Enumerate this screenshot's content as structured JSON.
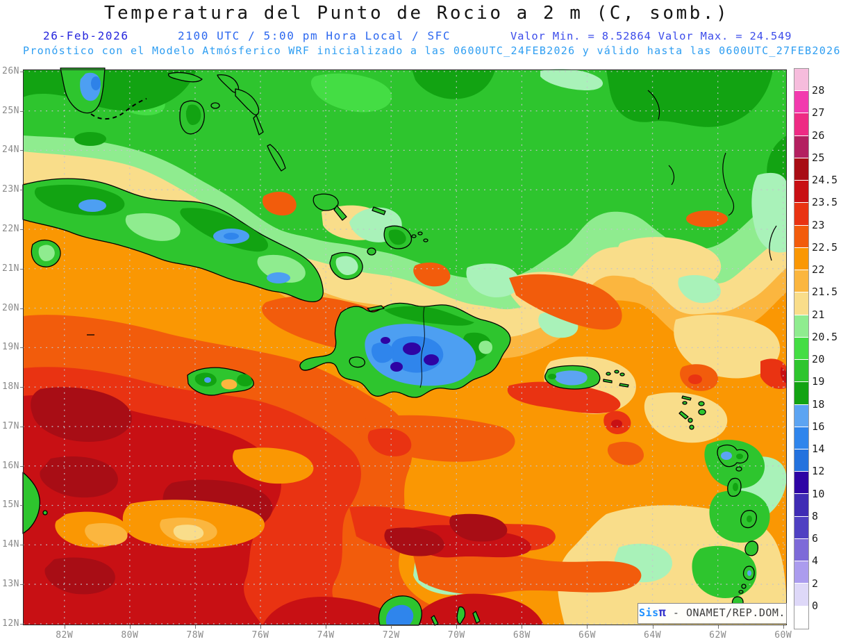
{
  "header": {
    "title": "Temperatura del Punto de Rocio a 2 m (C, somb.)",
    "date": "26-Feb-2026",
    "time": "2100 UTC / 5:00 pm Hora Local / SFC",
    "valor": "Valor Min. = 8.52864  Valor Max. = 24.549",
    "forecast": "Pronóstico con el Modelo Atmósferico WRF inicializado a las 0600UTC_24FEB2026 y válido hasta las  0600UTC_27FEB2026",
    "title_color": "#141414",
    "date_color": "#2626dd",
    "time_color": "#2d68ef",
    "valor_color": "#3c4cea",
    "forecast_color": "#2e9ef2"
  },
  "watermark": {
    "brand": "Sis",
    "symbol": "π",
    "rest": " - ONAMET/REP.DOM.",
    "brand_color": "#1e90ff",
    "symbol_color": "#3333cc",
    "rest_color": "#3c3c3c"
  },
  "axes": {
    "lat_ticks": [
      {
        "label": "26N",
        "deg": 26
      },
      {
        "label": "25N",
        "deg": 25
      },
      {
        "label": "24N",
        "deg": 24
      },
      {
        "label": "23N",
        "deg": 23
      },
      {
        "label": "22N",
        "deg": 22
      },
      {
        "label": "21N",
        "deg": 21
      },
      {
        "label": "20N",
        "deg": 20
      },
      {
        "label": "19N",
        "deg": 19
      },
      {
        "label": "18N",
        "deg": 18
      },
      {
        "label": "17N",
        "deg": 17
      },
      {
        "label": "16N",
        "deg": 16
      },
      {
        "label": "15N",
        "deg": 15
      },
      {
        "label": "14N",
        "deg": 14
      },
      {
        "label": "13N",
        "deg": 13
      },
      {
        "label": "12N",
        "deg": 12
      }
    ],
    "lon_ticks": [
      {
        "label": "82W",
        "deg": 82
      },
      {
        "label": "80W",
        "deg": 80
      },
      {
        "label": "78W",
        "deg": 78
      },
      {
        "label": "76W",
        "deg": 76
      },
      {
        "label": "74W",
        "deg": 74
      },
      {
        "label": "72W",
        "deg": 72
      },
      {
        "label": "70W",
        "deg": 70
      },
      {
        "label": "68W",
        "deg": 68
      },
      {
        "label": "66W",
        "deg": 66
      },
      {
        "label": "64W",
        "deg": 64
      },
      {
        "label": "62W",
        "deg": 62
      },
      {
        "label": "60W",
        "deg": 60
      }
    ],
    "label_color": "#8a8a8a",
    "grid_color": "#c4c4cc"
  },
  "chart_data": {
    "type": "heatmap",
    "title": "Temperatura del Punto de Rocio a 2 m (C, somb.)",
    "variable": "2-m dew point temperature, shaded (C)",
    "model": "WRF",
    "run_date": "26-Feb-2026",
    "valid_time": "2100 UTC / 5:00 pm Hora Local / SFC",
    "initialized": "0600UTC_24FEB2026",
    "valid_until": "0600UTC_27FEB2026",
    "value_min": 8.52864,
    "value_max": 24.549,
    "lat_range_deg_n": [
      12,
      26
    ],
    "lon_range_deg_w": [
      83.3,
      59.9
    ],
    "grid": "1-deg latitude / 2-deg longitude dotted graticule",
    "color_scale": [
      {
        "range": "> 28",
        "color": "#f6bcdc",
        "boundary_label": "28"
      },
      {
        "range": "27 - 28",
        "color": "#f23aae",
        "boundary_label": "27"
      },
      {
        "range": "26 - 27",
        "color": "#ee2b84",
        "boundary_label": "26"
      },
      {
        "range": "25 - 26",
        "color": "#b32060",
        "boundary_label": "25"
      },
      {
        "range": "24.5 - 25",
        "color": "#a80d15",
        "boundary_label": "24.5"
      },
      {
        "range": "23.5 - 24.5",
        "color": "#c81014",
        "boundary_label": "23.5"
      },
      {
        "range": "23 - 23.5",
        "color": "#e93312",
        "boundary_label": "23"
      },
      {
        "range": "22.5 - 23",
        "color": "#f25c0c",
        "boundary_label": "22.5"
      },
      {
        "range": "22 - 22.5",
        "color": "#fa9703",
        "boundary_label": "22"
      },
      {
        "range": "21.5 - 22",
        "color": "#fbb63f",
        "boundary_label": "21.5"
      },
      {
        "range": "21 - 21.5",
        "color": "#f9dd8a",
        "boundary_label": "21"
      },
      {
        "range": "20.5 - 21",
        "color": "#8fec8f",
        "boundary_label": "20.5"
      },
      {
        "range": "20 - 20.5",
        "color": "#44dd44",
        "boundary_label": "20"
      },
      {
        "range": "19 - 20",
        "color": "#2ec52e",
        "boundary_label": "19"
      },
      {
        "range": "18 - 19",
        "color": "#12a312",
        "boundary_label": "18"
      },
      {
        "range": "16 - 18",
        "color": "#5ca4f2",
        "boundary_label": "16"
      },
      {
        "range": "14 - 16",
        "color": "#2f85ec",
        "boundary_label": "14"
      },
      {
        "range": "12 - 14",
        "color": "#2472de",
        "boundary_label": "12"
      },
      {
        "range": "10 - 12",
        "color": "#2e04a4",
        "boundary_label": "10"
      },
      {
        "range": "8 - 10",
        "color": "#3f2cb4",
        "boundary_label": "8"
      },
      {
        "range": "6 - 8",
        "color": "#4f40c2",
        "boundary_label": "6"
      },
      {
        "range": "4 - 6",
        "color": "#7d6ad8",
        "boundary_label": "4"
      },
      {
        "range": "2 - 4",
        "color": "#ab9cee",
        "boundary_label": "2"
      },
      {
        "range": "0 - 2",
        "color": "#ded8f8",
        "boundary_label": "0"
      },
      {
        "range": "< 0",
        "color": "#ffffff",
        "boundary_label": null
      }
    ],
    "features": [
      "Dew points 18-21 C (greens) across Florida Straits, Bahamas and NE Atlantic band",
      "Dew points 16-18 C (blue) over south Florida tip",
      "Pale-yellow 21-21.5 C transition band along ~23-24N tilting southeast",
      "Orange 22-22.5 C over most of central Caribbean and Atlantic east of 70W",
      "Red 23.5-24.5 C with dark-red 24.5-25 C cores over SW Caribbean (12-20N west of 70W)",
      "Low dew points 10-16 C (blue/navy) over Hispaniola interior mountains",
      "Green 18-20 C over Cuba, Jamaica, Puerto Rico, Lesser Antilles and Guajira peninsula"
    ]
  }
}
